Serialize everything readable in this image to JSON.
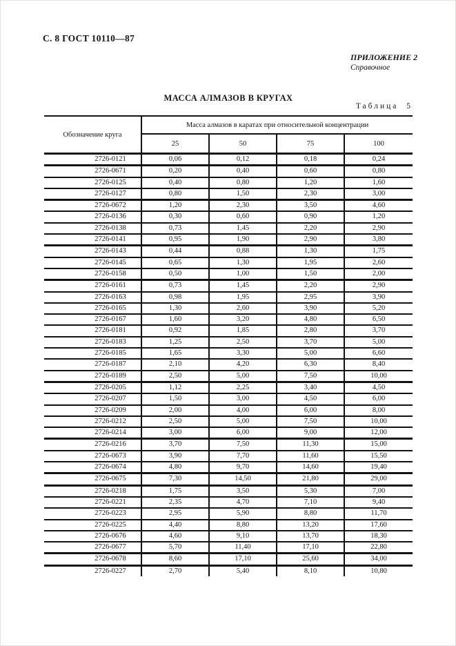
{
  "page": {
    "header": "С. 8 ГОСТ 10110—87",
    "annex": {
      "title": "ПРИЛОЖЕНИЕ 2",
      "subtitle": "Справочное"
    },
    "title": "МАССА АЛМАЗОВ В КРУГАХ",
    "table_label": "Таблица 5"
  },
  "table": {
    "designation_header": "Обозначение круга",
    "group_header": "Масса алмазов в каратах при относительной концентрации",
    "concentrations": [
      "25",
      "50",
      "75",
      "100"
    ],
    "rows": [
      {
        "designation": "2726-0121",
        "values": [
          "0,06",
          "0,12",
          "0,18",
          "0,24"
        ]
      },
      {
        "designation": "2726-0671",
        "values": [
          "0,20",
          "0,40",
          "0,60",
          "0,80"
        ]
      },
      {
        "designation": "2726-0125",
        "values": [
          "0,40",
          "0,80",
          "1,20",
          "1,60"
        ]
      },
      {
        "designation": "2726-0127",
        "values": [
          "0,80",
          "1,50",
          "2,30",
          "3,00"
        ]
      },
      {
        "designation": "2726-0672",
        "values": [
          "1,20",
          "2,30",
          "3,50",
          "4,60"
        ]
      },
      {
        "designation": "2726-0136",
        "values": [
          "0,30",
          "0,60",
          "0,90",
          "1,20"
        ]
      },
      {
        "designation": "2726-0138",
        "values": [
          "0,73",
          "1,45",
          "2,20",
          "2,90"
        ]
      },
      {
        "designation": "2726-0141",
        "values": [
          "0,95",
          "1,90",
          "2,90",
          "3,80"
        ]
      },
      {
        "designation": "2726-0143",
        "values": [
          "0,44",
          "0,88",
          "1,30",
          "1,75"
        ]
      },
      {
        "designation": "2726-0145",
        "values": [
          "0,65",
          "1,30",
          "1,95",
          "2,60"
        ]
      },
      {
        "designation": "2726-0158",
        "values": [
          "0,50",
          "1,00",
          "1,50",
          "2,00"
        ]
      },
      {
        "designation": "2726-0161",
        "values": [
          "0,73",
          "1,45",
          "2,20",
          "2,90"
        ]
      },
      {
        "designation": "2726-0163",
        "values": [
          "0,98",
          "1,95",
          "2,95",
          "3,90"
        ]
      },
      {
        "designation": "2726-0165",
        "values": [
          "1,30",
          "2,60",
          "3,90",
          "5,20"
        ]
      },
      {
        "designation": "2726-0167",
        "values": [
          "1,60",
          "3,20",
          "4,80",
          "6,50"
        ]
      },
      {
        "designation": "2726-0181",
        "values": [
          "0,92",
          "1,85",
          "2,80",
          "3,70"
        ]
      },
      {
        "designation": "2726-0183",
        "values": [
          "1,25",
          "2,50",
          "3,70",
          "5,00"
        ]
      },
      {
        "designation": "2726-0185",
        "values": [
          "1,65",
          "3,30",
          "5,00",
          "6,60"
        ]
      },
      {
        "designation": "2726-0187",
        "values": [
          "2,10",
          "4,20",
          "6,30",
          "8,40"
        ]
      },
      {
        "designation": "2726-0189",
        "values": [
          "2,50",
          "5,00",
          "7,50",
          "10,00"
        ]
      },
      {
        "designation": "2726-0205",
        "values": [
          "1,12",
          "2,25",
          "3,40",
          "4,50"
        ]
      },
      {
        "designation": "2726-0207",
        "values": [
          "1,50",
          "3,00",
          "4,50",
          "6,00"
        ]
      },
      {
        "designation": "2726-0209",
        "values": [
          "2,00",
          "4,00",
          "6,00",
          "8,00"
        ]
      },
      {
        "designation": "2726-0212",
        "values": [
          "2,50",
          "5,00",
          "7,50",
          "10,00"
        ]
      },
      {
        "designation": "2726-0214",
        "values": [
          "3,00",
          "6,00",
          "9,00",
          "12,00"
        ]
      },
      {
        "designation": "2726-0216",
        "values": [
          "3,70",
          "7,50",
          "11,30",
          "15,00"
        ]
      },
      {
        "designation": "2726-0673",
        "values": [
          "3,90",
          "7,70",
          "11,60",
          "15,50"
        ]
      },
      {
        "designation": "2726-0674",
        "values": [
          "4,80",
          "9,70",
          "14,60",
          "19,40"
        ]
      },
      {
        "designation": "2726-0675",
        "values": [
          "7,30",
          "14,50",
          "21,80",
          "29,00"
        ]
      },
      {
        "designation": "2726-0218",
        "values": [
          "1,75",
          "3,50",
          "5,30",
          "7,00"
        ]
      },
      {
        "designation": "2726-0221",
        "values": [
          "2,35",
          "4,70",
          "7,10",
          "9,40"
        ]
      },
      {
        "designation": "2726-0223",
        "values": [
          "2,95",
          "5,90",
          "8,80",
          "11,70"
        ]
      },
      {
        "designation": "2726-0225",
        "values": [
          "4,40",
          "8,80",
          "13,20",
          "17,60"
        ]
      },
      {
        "designation": "2726-0676",
        "values": [
          "4,60",
          "9,10",
          "13,70",
          "18,30"
        ]
      },
      {
        "designation": "2726-0677",
        "values": [
          "5,70",
          "11,40",
          "17,10",
          "22,80"
        ]
      },
      {
        "designation": "2726-0678",
        "values": [
          "8,60",
          "17,10",
          "25,60",
          "34,00"
        ]
      },
      {
        "designation": "2726-0227",
        "values": [
          "2,70",
          "5,40",
          "8,10",
          "10,80"
        ]
      }
    ]
  }
}
